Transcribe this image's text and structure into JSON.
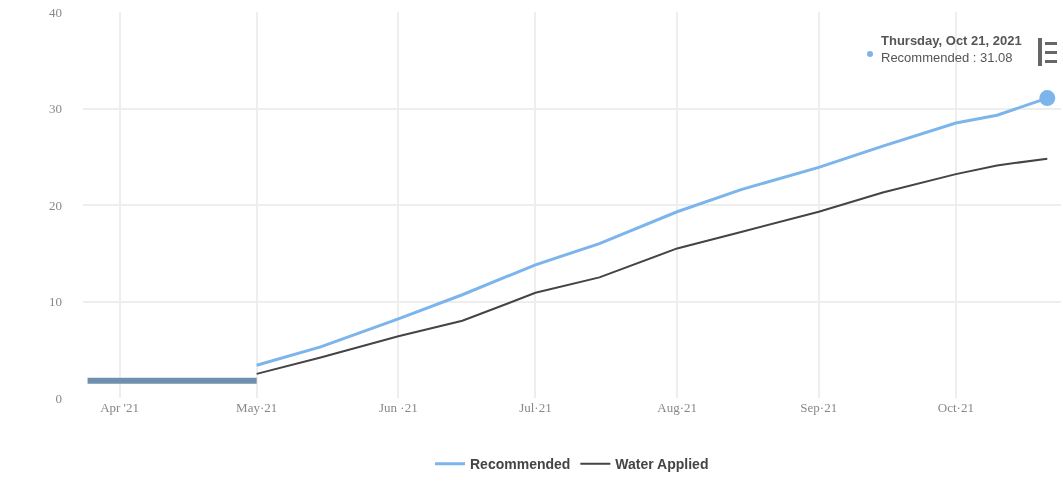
{
  "chart_data": {
    "type": "line",
    "xlim": [
      "2021-03-24",
      "2021-10-24"
    ],
    "xticks": [
      {
        "value": "2021-04-01",
        "label": "Apr '21"
      },
      {
        "value": "2021-05-01",
        "label": "May·21"
      },
      {
        "value": "2021-06-01",
        "label": "Jun ·21"
      },
      {
        "value": "2021-07-01",
        "label": "Jul·21"
      },
      {
        "value": "2021-08-01",
        "label": "Aug·21"
      },
      {
        "value": "2021-09-01",
        "label": "Sep·21"
      },
      {
        "value": "2021-10-01",
        "label": "Oct·21"
      }
    ],
    "ylim": [
      0,
      40
    ],
    "yticks": [
      0,
      10,
      20,
      30,
      40
    ],
    "grid": true,
    "legend": "bottom",
    "series": [
      {
        "name": "Recommended",
        "color": "#7cb5ec",
        "x": [
          "2021-05-01",
          "2021-05-15",
          "2021-06-01",
          "2021-06-15",
          "2021-07-01",
          "2021-07-15",
          "2021-08-01",
          "2021-08-15",
          "2021-09-01",
          "2021-09-15",
          "2021-10-01",
          "2021-10-10",
          "2021-10-21"
        ],
        "values": [
          3.4,
          5.3,
          8.2,
          10.7,
          13.8,
          16.0,
          19.3,
          21.6,
          23.9,
          26.1,
          28.5,
          29.3,
          31.08
        ]
      },
      {
        "name": "Water Applied",
        "color": "#434348",
        "x": [
          "2021-05-01",
          "2021-05-15",
          "2021-06-01",
          "2021-06-15",
          "2021-07-01",
          "2021-07-15",
          "2021-08-01",
          "2021-08-15",
          "2021-09-01",
          "2021-09-15",
          "2021-10-01",
          "2021-10-10",
          "2021-10-21"
        ],
        "values": [
          2.5,
          4.2,
          6.4,
          8.0,
          10.9,
          12.5,
          15.5,
          17.2,
          19.3,
          21.3,
          23.2,
          24.1,
          24.8
        ]
      },
      {
        "color": "#6f8faf",
        "x": [
          "2021-03-25",
          "2021-05-01"
        ],
        "values": [
          1.8,
          1.8
        ]
      },
      {
        "type": "scatter",
        "marker": "circle",
        "color": "#7cb5ec",
        "x": [
          "2021-10-21"
        ],
        "values": [
          31.08
        ]
      }
    ],
    "annotations": [
      "Thursday, Oct 21, 2021\nRecommended : 31.08"
    ]
  }
}
